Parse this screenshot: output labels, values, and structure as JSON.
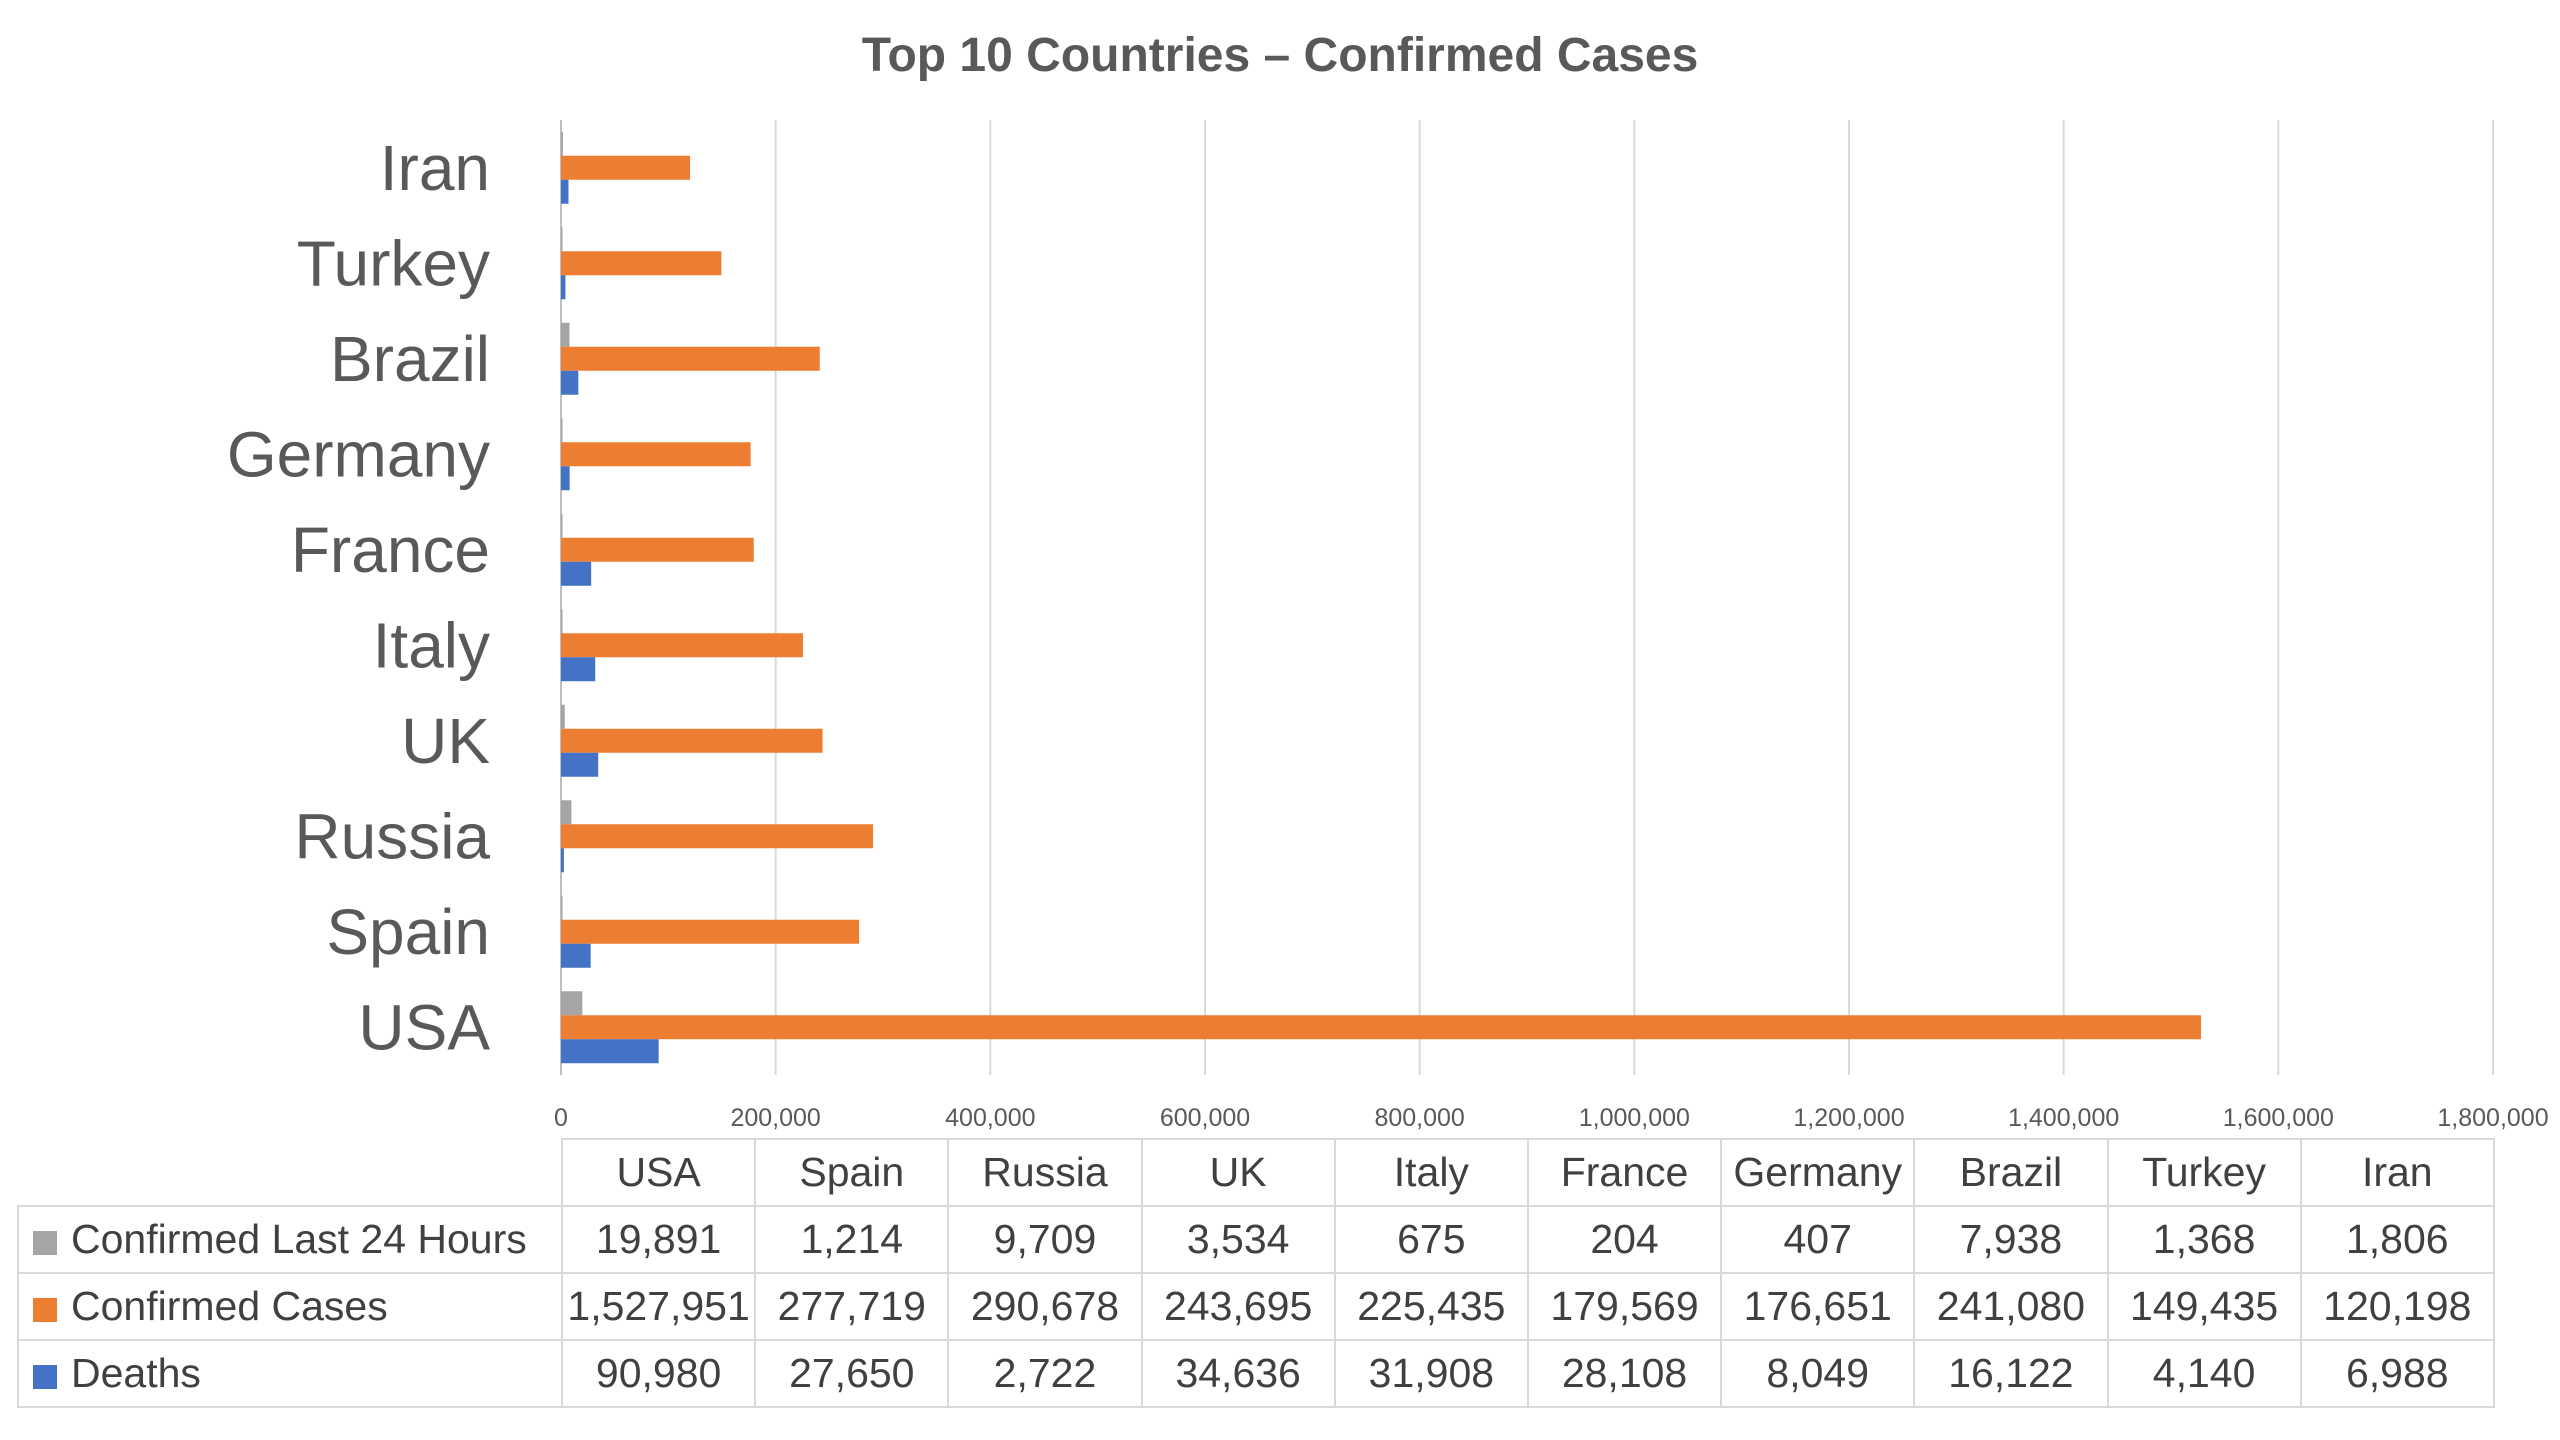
{
  "chart_data": {
    "type": "bar",
    "orientation": "horizontal",
    "title": "Top 10 Countries – Confirmed Cases",
    "xlabel": "",
    "ylabel": "",
    "xlim": [
      0,
      1800000
    ],
    "x_ticks": [
      "0",
      "200,000",
      "400,000",
      "600,000",
      "800,000",
      "1,000,000",
      "1,200,000",
      "1,400,000",
      "1,600,000",
      "1,800,000"
    ],
    "grid": true,
    "legend": "data-table",
    "categories": [
      "USA",
      "Spain",
      "Russia",
      "UK",
      "Italy",
      "France",
      "Germany",
      "Brazil",
      "Turkey",
      "Iran"
    ],
    "series": [
      {
        "name": "Confirmed Last 24 Hours",
        "color": "#a5a5a5",
        "values": [
          19891,
          1214,
          9709,
          3534,
          675,
          204,
          407,
          7938,
          1368,
          1806
        ],
        "labels": [
          "19,891",
          "1,214",
          "9,709",
          "3,534",
          "675",
          "204",
          "407",
          "7,938",
          "1,368",
          "1,806"
        ]
      },
      {
        "name": "Confirmed Cases",
        "color": "#ed7d31",
        "values": [
          1527951,
          277719,
          290678,
          243695,
          225435,
          179569,
          176651,
          241080,
          149435,
          120198
        ],
        "labels": [
          "1,527,951",
          "277,719",
          "290,678",
          "243,695",
          "225,435",
          "179,569",
          "176,651",
          "241,080",
          "149,435",
          "120,198"
        ]
      },
      {
        "name": "Deaths",
        "color": "#4472c4",
        "values": [
          90980,
          27650,
          2722,
          34636,
          31908,
          28108,
          8049,
          16122,
          4140,
          6988
        ],
        "labels": [
          "90,980",
          "27,650",
          "2,722",
          "34,636",
          "31,908",
          "28,108",
          "8,049",
          "16,122",
          "4,140",
          "6,988"
        ]
      }
    ]
  }
}
